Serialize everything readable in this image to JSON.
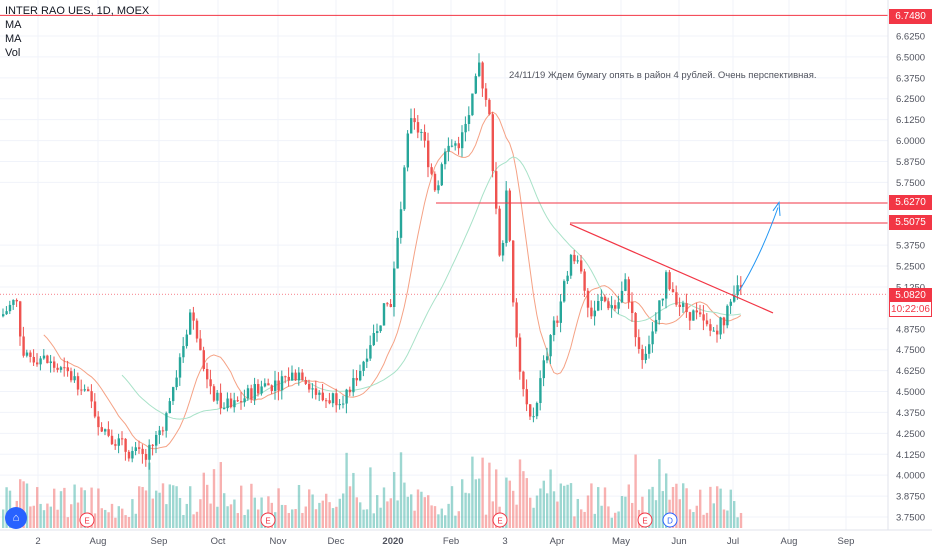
{
  "header": {
    "symbol_line": "INTER RAO UES, 1D, MOEX",
    "indicators": [
      "MA",
      "MA",
      "Vol"
    ]
  },
  "annotation": "24/11/19 Ждем бумагу опять в район 4 рублей. Очень перспективная.",
  "price_tags": {
    "level_high": "6.7480",
    "level_mid": "5.6270",
    "level_res": "5.5075",
    "last_price": "5.0820",
    "countdown": "10:22:06"
  },
  "chart_data": {
    "type": "candlestick",
    "y_ticks": [
      "6.6250",
      "6.5000",
      "6.3750",
      "6.2500",
      "6.1250",
      "6.0000",
      "5.8750",
      "5.7500",
      "5.3750",
      "5.2500",
      "5.1250",
      "4.8750",
      "4.7500",
      "4.6250",
      "4.5000",
      "4.3750",
      "4.2500",
      "4.1250",
      "4.0000",
      "3.8750",
      "3.7500"
    ],
    "ylim": [
      3.7,
      6.8
    ],
    "x_ticks": [
      "2",
      "Aug",
      "Sep",
      "Oct",
      "Nov",
      "Dec",
      "2020",
      "Feb",
      "3",
      "Apr",
      "May",
      "Jun",
      "Jul",
      "Aug",
      "Sep"
    ],
    "horizontal_levels": [
      6.748,
      5.627,
      5.5075
    ],
    "trendline": {
      "from": [
        "Apr",
        5.5
      ],
      "to": [
        "Jul",
        4.97
      ]
    },
    "forecast_arrow": {
      "from": 5.1,
      "to": 5.62
    },
    "earnings_markers": [
      "E",
      "E",
      "E",
      "E",
      "D"
    ],
    "last_price": 5.082,
    "colors": {
      "up": "#26a69a",
      "down": "#ef5350",
      "level": "#f23645",
      "arrow": "#2196f3",
      "ma_fast": "#f5a285",
      "ma_slow": "#a8e2c8"
    }
  }
}
